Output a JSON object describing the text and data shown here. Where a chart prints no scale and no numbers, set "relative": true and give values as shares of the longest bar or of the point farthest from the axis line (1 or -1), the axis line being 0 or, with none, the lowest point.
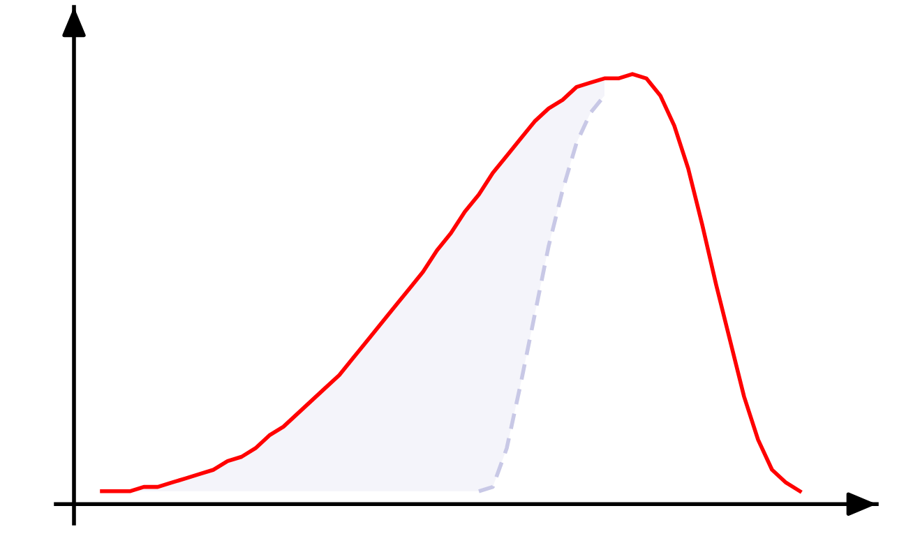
{
  "chart_data": {
    "type": "line",
    "relative": true,
    "categories": [
      null,
      null,
      null,
      null,
      null,
      null,
      null,
      null,
      null,
      null,
      null,
      null,
      null,
      null,
      null,
      null,
      null,
      null,
      null,
      null,
      null,
      null,
      null,
      null,
      null,
      null,
      null,
      null,
      null,
      null,
      null,
      null,
      null,
      null,
      null,
      null,
      null,
      null,
      null,
      null,
      null,
      null,
      null,
      null,
      null,
      null,
      null,
      null,
      null,
      null,
      null
    ],
    "series": [
      {
        "color": "#c8c8e6",
        "line_style": "dashed",
        "values": [
          null,
          null,
          null,
          null,
          null,
          null,
          null,
          null,
          null,
          null,
          null,
          null,
          null,
          null,
          null,
          null,
          null,
          null,
          null,
          null,
          null,
          null,
          null,
          null,
          null,
          null,
          null,
          0.03,
          0.04,
          0.13,
          0.28,
          0.44,
          0.6,
          0.73,
          0.84,
          0.91,
          0.95,
          null,
          null,
          null,
          null,
          null,
          null,
          null,
          null,
          null,
          null,
          null,
          null,
          null,
          null
        ],
        "lower": [
          0.03,
          0.03,
          0.03,
          0.03,
          0.03,
          0.03,
          0.03,
          0.03,
          0.03,
          0.03,
          0.03,
          0.03,
          0.03,
          0.03,
          0.03,
          0.03,
          0.03,
          0.03,
          0.03,
          0.03,
          0.03,
          0.03,
          0.03,
          0.03,
          0.03,
          0.03,
          0.03,
          0.03,
          0.04,
          0.13,
          0.28,
          0.44,
          0.6,
          0.73,
          0.84,
          0.91,
          0.95,
          null,
          null,
          null,
          null,
          null,
          null,
          null,
          null,
          null,
          null,
          null,
          null,
          null,
          null
        ],
        "upper": [
          0.03,
          0.03,
          0.03,
          0.04,
          0.04,
          0.05,
          0.06,
          0.07,
          0.08,
          0.1,
          0.11,
          0.13,
          0.16,
          0.18,
          0.21,
          0.24,
          0.27,
          0.3,
          0.34,
          0.38,
          0.42,
          0.46,
          0.5,
          0.54,
          0.59,
          0.63,
          0.68,
          0.72,
          0.77,
          0.81,
          0.85,
          0.89,
          0.92,
          0.94,
          0.97,
          0.98,
          0.99,
          null,
          null,
          null,
          null,
          null,
          null,
          null,
          null,
          null,
          null,
          null,
          null,
          null,
          null
        ]
      },
      {
        "type": "line",
        "color": "#ff0000",
        "line_style": "solid",
        "values": [
          0.03,
          0.03,
          0.03,
          0.04,
          0.04,
          0.05,
          0.06,
          0.07,
          0.08,
          0.1,
          0.11,
          0.13,
          0.16,
          0.18,
          0.21,
          0.24,
          0.27,
          0.3,
          0.34,
          0.38,
          0.42,
          0.46,
          0.5,
          0.54,
          0.59,
          0.63,
          0.68,
          0.72,
          0.77,
          0.81,
          0.85,
          0.89,
          0.92,
          0.94,
          0.97,
          0.98,
          0.99,
          0.99,
          1.0,
          0.99,
          0.95,
          0.88,
          0.78,
          0.65,
          0.51,
          0.38,
          0.25,
          0.15,
          0.08,
          0.05,
          0.03
        ]
      }
    ]
  }
}
